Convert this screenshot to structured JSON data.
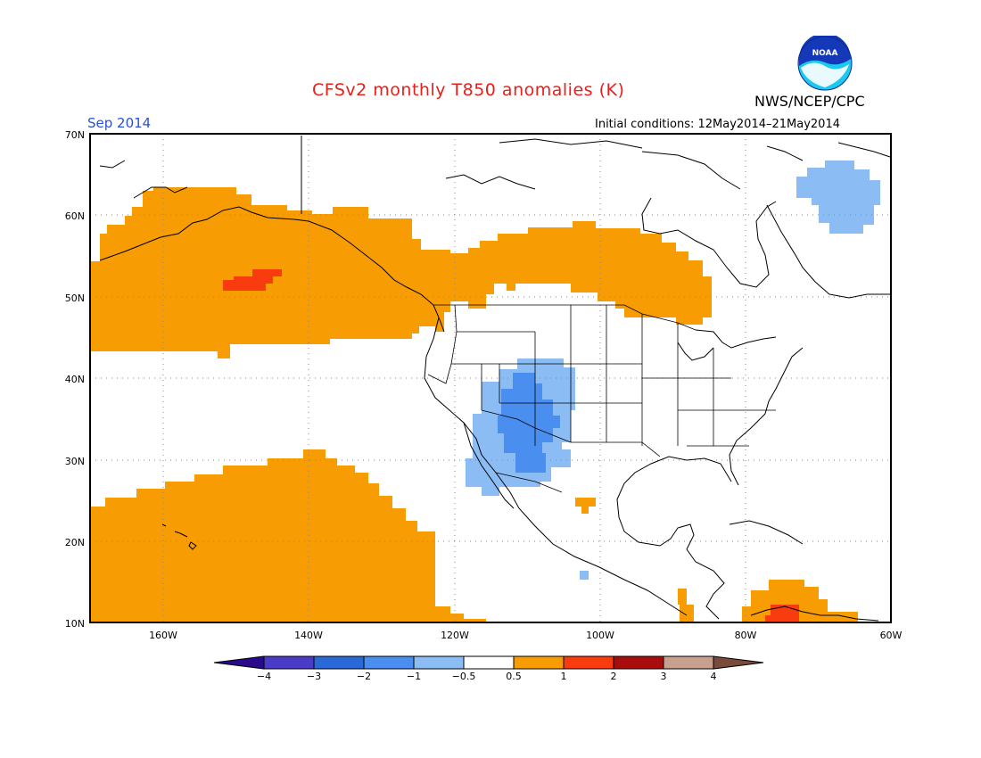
{
  "header": {
    "title": "CFSv2 monthly T850 anomalies (K)",
    "agency": "NWS/NCEP/CPC",
    "valid_month": "Sep 2014",
    "initial_conditions": "Initial conditions: 12May2014–21May2014"
  },
  "logo": {
    "text": "NOAA",
    "icon": "noaa-logo"
  },
  "map": {
    "region": {
      "lon_range": [
        -170,
        -60
      ],
      "lat_range": [
        10,
        70
      ]
    },
    "lat_labels": [
      "70N",
      "60N",
      "50N",
      "40N",
      "30N",
      "20N",
      "10N"
    ],
    "lon_labels": [
      "160W",
      "140W",
      "120W",
      "100W",
      "80W",
      "60W"
    ]
  },
  "colorbar": {
    "labels": [
      "−4",
      "−3",
      "−2",
      "−1",
      "−0.5",
      "0.5",
      "1",
      "2",
      "3",
      "4"
    ],
    "colors": [
      "#2a0a8c",
      "#4a3cc8",
      "#2a6ad8",
      "#4a8ef0",
      "#8cbcf4",
      "#ffffff",
      "#f89c04",
      "#f83c10",
      "#a80c0c",
      "#c8a090",
      "#7a4a3a"
    ]
  },
  "colors": {
    "warm_05_1": "#f89c04",
    "warm_1_2": "#f83c10",
    "cool_05_1": "#8cbcf4",
    "cool_1_2": "#4a8ef0"
  }
}
